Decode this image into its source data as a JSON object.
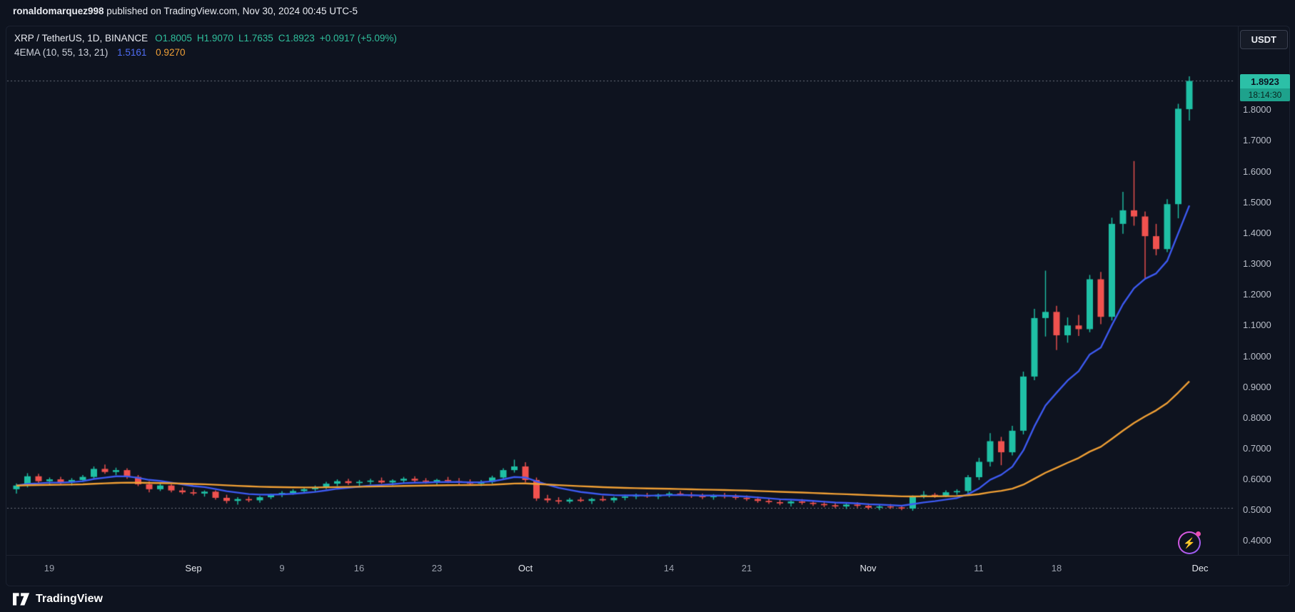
{
  "header": {
    "username": "ronaldomarquez998",
    "text": " published on TradingView.com, Nov 30, 2024 00:45 UTC-5"
  },
  "toolbar": {
    "currency_label": "USDT"
  },
  "legend": {
    "symbol": "XRP / TetherUS, 1D, BINANCE",
    "open_label": "O",
    "open": "1.8005",
    "high_label": "H",
    "high": "1.9070",
    "low_label": "L",
    "low": "1.7635",
    "close_label": "C",
    "close": "1.8923",
    "change": "+0.0917 (+5.09%)",
    "indicator_name": "4EMA (10, 55, 13, 21)",
    "indicator_value_fast": "1.5161",
    "indicator_value_slow": "0.9270"
  },
  "price_badge": {
    "price": "1.8923",
    "countdown": "18:14:30"
  },
  "axes": {
    "price_labels": [
      "1.8000",
      "1.7000",
      "1.6000",
      "1.5000",
      "1.4000",
      "1.3000",
      "1.2000",
      "1.1000",
      "1.0000",
      "0.9000",
      "0.8000",
      "0.7000",
      "0.6000",
      "0.5000",
      "0.4000"
    ],
    "time_labels": [
      "19",
      "Sep",
      "9",
      "16",
      "23",
      "Oct",
      "14",
      "21",
      "Nov",
      "11",
      "18",
      "Dec"
    ]
  },
  "footer": {
    "brand": "TradingView"
  },
  "colors": {
    "up": "#1fc0a5",
    "down": "#f0524f",
    "ema_fast": "#3d5af1",
    "ema_slow": "#ef9f35",
    "badge": "#2cc0a7"
  },
  "chart_data": {
    "type": "candlestick",
    "title": "XRP / TetherUS, 1D, BINANCE",
    "symbol": "XRP/USDT",
    "exchange": "BINANCE",
    "timeframe": "1D",
    "x_axis": {
      "start_date": "2024-08-16",
      "end_date": "2024-11-30",
      "tick_labels": [
        "19",
        "Sep",
        "9",
        "16",
        "23",
        "Oct",
        "14",
        "21",
        "Nov",
        "11",
        "18",
        "Dec"
      ]
    },
    "y_axis": {
      "min": 0.4,
      "max": 1.95,
      "tick_step": 0.1
    },
    "last": {
      "open": 1.8005,
      "high": 1.907,
      "low": 1.7635,
      "close": 1.8923,
      "change": 0.0917,
      "change_pct": 5.09
    },
    "reference_lines": [
      1.8923,
      0.506
    ],
    "indicators": [
      {
        "name": "EMA",
        "period": 10,
        "color": "#3d5af1",
        "last_value": 1.5161
      },
      {
        "name": "EMA",
        "period": 55,
        "color": "#ef9f35",
        "last_value": 0.927
      }
    ],
    "candles": [
      [
        0.566,
        0.585,
        0.552,
        0.578
      ],
      [
        0.578,
        0.618,
        0.572,
        0.608
      ],
      [
        0.608,
        0.616,
        0.585,
        0.592
      ],
      [
        0.592,
        0.604,
        0.578,
        0.598
      ],
      [
        0.598,
        0.606,
        0.582,
        0.588
      ],
      [
        0.588,
        0.602,
        0.578,
        0.596
      ],
      [
        0.596,
        0.612,
        0.59,
        0.606
      ],
      [
        0.606,
        0.64,
        0.6,
        0.632
      ],
      [
        0.632,
        0.646,
        0.616,
        0.622
      ],
      [
        0.622,
        0.636,
        0.612,
        0.628
      ],
      [
        0.628,
        0.634,
        0.6,
        0.606
      ],
      [
        0.606,
        0.612,
        0.576,
        0.582
      ],
      [
        0.582,
        0.592,
        0.556,
        0.566
      ],
      [
        0.566,
        0.586,
        0.56,
        0.578
      ],
      [
        0.578,
        0.582,
        0.556,
        0.562
      ],
      [
        0.562,
        0.572,
        0.55,
        0.556
      ],
      [
        0.556,
        0.566,
        0.546,
        0.552
      ],
      [
        0.552,
        0.562,
        0.542,
        0.558
      ],
      [
        0.558,
        0.562,
        0.532,
        0.538
      ],
      [
        0.538,
        0.548,
        0.52,
        0.528
      ],
      [
        0.528,
        0.54,
        0.516,
        0.534
      ],
      [
        0.534,
        0.542,
        0.524,
        0.53
      ],
      [
        0.53,
        0.544,
        0.522,
        0.54
      ],
      [
        0.54,
        0.552,
        0.534,
        0.548
      ],
      [
        0.548,
        0.56,
        0.54,
        0.554
      ],
      [
        0.554,
        0.566,
        0.548,
        0.56
      ],
      [
        0.56,
        0.572,
        0.552,
        0.566
      ],
      [
        0.566,
        0.578,
        0.558,
        0.572
      ],
      [
        0.572,
        0.59,
        0.566,
        0.584
      ],
      [
        0.584,
        0.598,
        0.576,
        0.592
      ],
      [
        0.592,
        0.6,
        0.58,
        0.586
      ],
      [
        0.586,
        0.596,
        0.576,
        0.59
      ],
      [
        0.59,
        0.6,
        0.582,
        0.594
      ],
      [
        0.594,
        0.604,
        0.584,
        0.588
      ],
      [
        0.588,
        0.598,
        0.578,
        0.594
      ],
      [
        0.594,
        0.606,
        0.586,
        0.6
      ],
      [
        0.6,
        0.608,
        0.588,
        0.594
      ],
      [
        0.594,
        0.602,
        0.584,
        0.59
      ],
      [
        0.59,
        0.6,
        0.58,
        0.596
      ],
      [
        0.596,
        0.606,
        0.586,
        0.592
      ],
      [
        0.592,
        0.602,
        0.582,
        0.588
      ],
      [
        0.588,
        0.598,
        0.578,
        0.584
      ],
      [
        0.584,
        0.596,
        0.576,
        0.59
      ],
      [
        0.59,
        0.61,
        0.584,
        0.604
      ],
      [
        0.604,
        0.634,
        0.598,
        0.628
      ],
      [
        0.628,
        0.662,
        0.62,
        0.64
      ],
      [
        0.64,
        0.654,
        0.588,
        0.596
      ],
      [
        0.596,
        0.604,
        0.528,
        0.536
      ],
      [
        0.536,
        0.548,
        0.522,
        0.53
      ],
      [
        0.53,
        0.54,
        0.518,
        0.526
      ],
      [
        0.526,
        0.538,
        0.52,
        0.532
      ],
      [
        0.532,
        0.54,
        0.524,
        0.528
      ],
      [
        0.528,
        0.538,
        0.518,
        0.534
      ],
      [
        0.534,
        0.544,
        0.526,
        0.53
      ],
      [
        0.53,
        0.542,
        0.522,
        0.538
      ],
      [
        0.538,
        0.548,
        0.53,
        0.542
      ],
      [
        0.542,
        0.552,
        0.534,
        0.546
      ],
      [
        0.546,
        0.554,
        0.538,
        0.542
      ],
      [
        0.542,
        0.552,
        0.534,
        0.548
      ],
      [
        0.548,
        0.558,
        0.54,
        0.552
      ],
      [
        0.552,
        0.56,
        0.544,
        0.548
      ],
      [
        0.548,
        0.556,
        0.538,
        0.544
      ],
      [
        0.544,
        0.552,
        0.534,
        0.54
      ],
      [
        0.54,
        0.55,
        0.532,
        0.546
      ],
      [
        0.546,
        0.554,
        0.536,
        0.542
      ],
      [
        0.542,
        0.55,
        0.532,
        0.538
      ],
      [
        0.538,
        0.546,
        0.528,
        0.534
      ],
      [
        0.534,
        0.542,
        0.522,
        0.528
      ],
      [
        0.528,
        0.538,
        0.518,
        0.524
      ],
      [
        0.524,
        0.534,
        0.514,
        0.52
      ],
      [
        0.52,
        0.53,
        0.51,
        0.526
      ],
      [
        0.526,
        0.534,
        0.516,
        0.522
      ],
      [
        0.522,
        0.53,
        0.512,
        0.518
      ],
      [
        0.518,
        0.528,
        0.508,
        0.514
      ],
      [
        0.514,
        0.524,
        0.504,
        0.51
      ],
      [
        0.51,
        0.522,
        0.502,
        0.516
      ],
      [
        0.516,
        0.524,
        0.506,
        0.512
      ],
      [
        0.512,
        0.52,
        0.5,
        0.506
      ],
      [
        0.506,
        0.516,
        0.498,
        0.51
      ],
      [
        0.51,
        0.518,
        0.502,
        0.507
      ],
      [
        0.507,
        0.514,
        0.498,
        0.503
      ],
      [
        0.503,
        0.546,
        0.496,
        0.542
      ],
      [
        0.542,
        0.56,
        0.536,
        0.548
      ],
      [
        0.548,
        0.554,
        0.538,
        0.545
      ],
      [
        0.545,
        0.562,
        0.54,
        0.556
      ],
      [
        0.556,
        0.566,
        0.548,
        0.56
      ],
      [
        0.56,
        0.612,
        0.552,
        0.605
      ],
      [
        0.605,
        0.668,
        0.596,
        0.655
      ],
      [
        0.655,
        0.748,
        0.64,
        0.722
      ],
      [
        0.722,
        0.736,
        0.644,
        0.686
      ],
      [
        0.686,
        0.772,
        0.676,
        0.756
      ],
      [
        0.756,
        0.948,
        0.744,
        0.932
      ],
      [
        0.932,
        1.152,
        0.92,
        1.122
      ],
      [
        1.122,
        1.276,
        1.062,
        1.142
      ],
      [
        1.142,
        1.162,
        1.018,
        1.066
      ],
      [
        1.066,
        1.124,
        1.042,
        1.098
      ],
      [
        1.098,
        1.132,
        1.064,
        1.086
      ],
      [
        1.086,
        1.262,
        1.076,
        1.248
      ],
      [
        1.248,
        1.272,
        1.102,
        1.126
      ],
      [
        1.126,
        1.448,
        1.114,
        1.428
      ],
      [
        1.428,
        1.532,
        1.396,
        1.472
      ],
      [
        1.472,
        1.632,
        1.422,
        1.452
      ],
      [
        1.452,
        1.468,
        1.248,
        1.388
      ],
      [
        1.388,
        1.428,
        1.326,
        1.346
      ],
      [
        1.346,
        1.508,
        1.336,
        1.492
      ],
      [
        1.492,
        1.818,
        1.446,
        1.802
      ],
      [
        1.8005,
        1.907,
        1.7635,
        1.8923
      ]
    ]
  }
}
